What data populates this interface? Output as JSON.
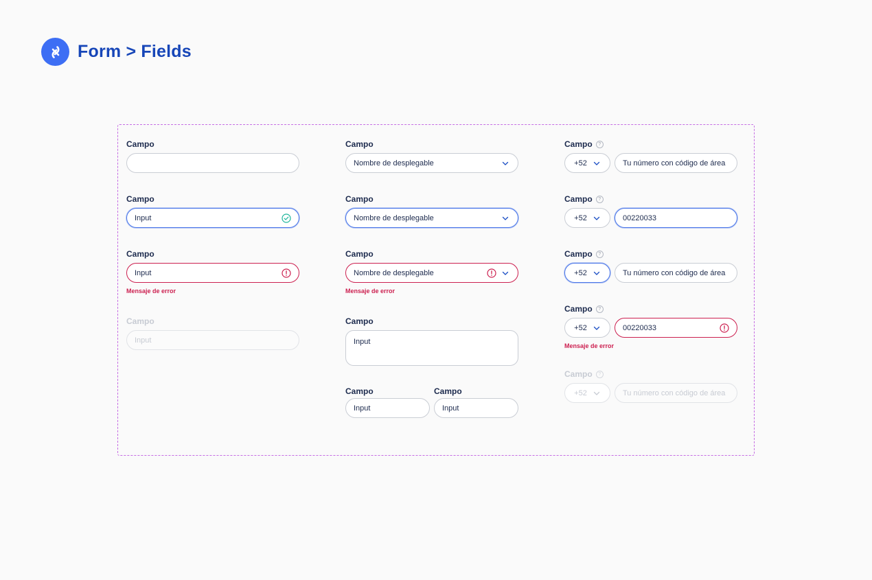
{
  "header": {
    "title": "Form > Fields",
    "logo_icon": "chain-link-icon",
    "brand_color": "#3d6ef4"
  },
  "colors": {
    "focus": "#4a76e8",
    "error": "#cc1f4f",
    "success": "#1cb59a",
    "frame": "#c56be3"
  },
  "col1": {
    "f1": {
      "label": "Campo",
      "value": ""
    },
    "f2": {
      "label": "Campo",
      "value": "Input",
      "state": "success"
    },
    "f3": {
      "label": "Campo",
      "value": "Input",
      "state": "error",
      "error": "Mensaje de error"
    },
    "f4": {
      "label": "Campo",
      "placeholder": "Input",
      "state": "disabled"
    }
  },
  "col2": {
    "d1": {
      "label": "Campo",
      "value": "Nombre de desplegable"
    },
    "d2": {
      "label": "Campo",
      "value": "Nombre de desplegable",
      "state": "focus"
    },
    "d3": {
      "label": "Campo",
      "value": "Nombre de desplegable",
      "state": "error",
      "error": "Mensaje de error"
    },
    "ta": {
      "label": "Campo",
      "value": "Input"
    },
    "s1": {
      "label": "Campo",
      "value": "Input"
    },
    "s2": {
      "label": "Campo",
      "value": "Input"
    }
  },
  "col3": {
    "p1": {
      "label": "Campo",
      "code": "+52",
      "placeholder": "Tu número con código de área"
    },
    "p2": {
      "label": "Campo",
      "code": "+52",
      "value": "00220033",
      "state": "focus-number"
    },
    "p3": {
      "label": "Campo",
      "code": "+52",
      "placeholder": "Tu número con código de área",
      "state": "focus-code"
    },
    "p4": {
      "label": "Campo",
      "code": "+52",
      "value": "00220033",
      "state": "error",
      "error": "Mensaje de error"
    },
    "p5": {
      "label": "Campo",
      "code": "+52",
      "placeholder": "Tu número con código de área",
      "state": "disabled"
    }
  }
}
